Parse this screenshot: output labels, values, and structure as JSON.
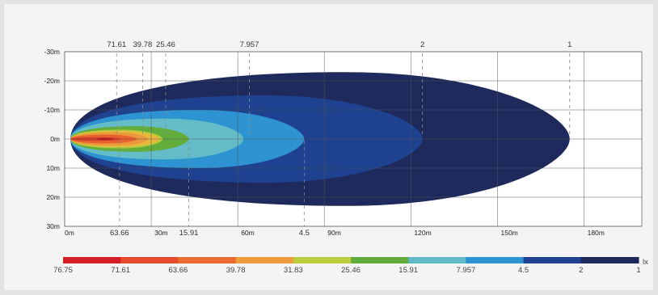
{
  "chart_data": {
    "type": "heatmap",
    "title": "",
    "unit": "lx",
    "x_axis": {
      "labels": [
        "0m",
        "30m",
        "60m",
        "90m",
        "120m",
        "150m",
        "180m"
      ],
      "values": [
        0,
        30,
        60,
        90,
        120,
        150,
        180
      ],
      "range": [
        0,
        200
      ]
    },
    "y_axis": {
      "labels": [
        "-30m",
        "-20m",
        "-10m",
        "0m",
        "10m",
        "20m",
        "30m"
      ],
      "values": [
        -30,
        -20,
        -10,
        0,
        10,
        20,
        30
      ],
      "range": [
        -30,
        30
      ]
    },
    "grid": true,
    "isolux_contours": [
      {
        "lux": "1",
        "color": "#1e2a5c",
        "reach_m": 175,
        "half_width_m": 23
      },
      {
        "lux": "2",
        "color": "#1e4190",
        "reach_m": 124,
        "half_width_m": 15
      },
      {
        "lux": "4.5",
        "color": "#2e94d1",
        "reach_m": 83,
        "half_width_m": 10
      },
      {
        "lux": "7.957",
        "color": "#64bcc8",
        "reach_m": 62,
        "half_width_m": 7
      },
      {
        "lux": "15.91",
        "color": "#62ac3c",
        "reach_m": 43,
        "half_width_m": 4.4
      },
      {
        "lux": "25.46",
        "color": "#b6cc3c",
        "reach_m": 34,
        "half_width_m": 3.2
      },
      {
        "lux": "31.83",
        "color": "#e8b83a",
        "reach_m": 33,
        "half_width_m": 2.7
      },
      {
        "lux": "39.78",
        "color": "#ea9a3c",
        "reach_m": 29,
        "half_width_m": 2.3
      },
      {
        "lux": "63.66",
        "color": "#e8602c",
        "reach_m": 25,
        "half_width_m": 1.5
      },
      {
        "lux": "71.61",
        "color": "#d93b29",
        "reach_m": 20,
        "half_width_m": 0.6
      }
    ],
    "top_markers": [
      {
        "label": "71.61",
        "x": 18
      },
      {
        "label": "39.78",
        "x": 27
      },
      {
        "label": "25.46",
        "x": 35
      },
      {
        "label": "7.957",
        "x": 64
      },
      {
        "label": "2",
        "x": 124
      },
      {
        "label": "1",
        "x": 175
      }
    ],
    "bottom_markers": [
      {
        "label": "63.66",
        "x": 19
      },
      {
        "label": "15.91",
        "x": 43
      },
      {
        "label": "4.5",
        "x": 83
      }
    ],
    "legend": {
      "colors": [
        "#d31f26",
        "#e44a2b",
        "#ea6a30",
        "#ee9c3e",
        "#bbcd3d",
        "#62ac3c",
        "#62b9c6",
        "#2e94d1",
        "#1e4190",
        "#1e2a5c"
      ],
      "labels": [
        "76.75",
        "71.61",
        "63.66",
        "39.78",
        "31.83",
        "25.46",
        "15.91",
        "7.957",
        "4.5",
        "2",
        "1"
      ],
      "unit": "lx",
      "placement": "bottom"
    }
  }
}
